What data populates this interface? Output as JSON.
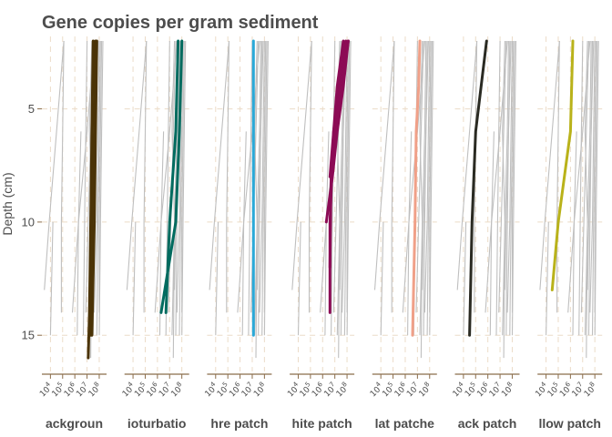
{
  "chart_data": {
    "type": "line",
    "title": "Gene copies per gram sediment",
    "ylabel": "Depth (cm)",
    "xlabel": "",
    "y_scale": "reversed",
    "x_scale": "log10",
    "xlim_log10": [
      3.3,
      8.6
    ],
    "ylim": [
      1.8,
      16.6
    ],
    "y_ticks": [
      5,
      10,
      15
    ],
    "y_tick_labels": [
      "5",
      "10",
      "15"
    ],
    "x_tick_labels": [
      "10^4",
      "10^5",
      "10^6",
      "10^7",
      "10^8"
    ],
    "x_tick_exponents": [
      4,
      5,
      6,
      7,
      8
    ],
    "grid": true,
    "legend": "none",
    "panels": [
      {
        "label": "ackgroun",
        "color": "#4a3307",
        "series": [
          {
            "points": [
              [
                7.5,
                2
              ],
              [
                7.4,
                6
              ],
              [
                7.3,
                10
              ],
              [
                7.2,
                14
              ],
              [
                7.1,
                16
              ]
            ]
          },
          {
            "points": [
              [
                7.7,
                2
              ],
              [
                7.6,
                6
              ],
              [
                7.4,
                10
              ],
              [
                7.3,
                15
              ]
            ]
          },
          {
            "points": [
              [
                7.8,
                2
              ],
              [
                7.6,
                10
              ],
              [
                7.4,
                15
              ]
            ]
          }
        ]
      },
      {
        "label": "ioturbatio",
        "color": "#006b5f",
        "series": [
          {
            "points": [
              [
                7.7,
                2
              ],
              [
                7.5,
                6
              ],
              [
                7.0,
                10
              ],
              [
                6.7,
                14
              ]
            ]
          },
          {
            "points": [
              [
                8.0,
                2
              ],
              [
                7.8,
                6
              ],
              [
                7.5,
                10
              ],
              [
                6.3,
                14
              ]
            ]
          }
        ]
      },
      {
        "label": "hre patch",
        "color": "#2aa9d8",
        "series": [
          {
            "points": [
              [
                7.1,
                2
              ],
              [
                7.1,
                6
              ],
              [
                7.1,
                10
              ],
              [
                7.1,
                15
              ]
            ]
          }
        ]
      },
      {
        "label": "hite patch",
        "color": "#8c0b55",
        "series": [
          {
            "points": [
              [
                8.1,
                2
              ],
              [
                7.7,
                4
              ],
              [
                7.2,
                6
              ],
              [
                6.8,
                8
              ],
              [
                6.3,
                10
              ]
            ]
          },
          {
            "points": [
              [
                7.9,
                2
              ],
              [
                7.4,
                4
              ],
              [
                6.9,
                6
              ],
              [
                6.6,
                10
              ],
              [
                6.6,
                14
              ]
            ]
          },
          {
            "points": [
              [
                8.1,
                2
              ],
              [
                7.6,
                4
              ],
              [
                7.1,
                6
              ],
              [
                6.7,
                8
              ],
              [
                6.6,
                12
              ]
            ]
          },
          {
            "points": [
              [
                7.7,
                2
              ],
              [
                7.2,
                4
              ],
              [
                6.9,
                6
              ],
              [
                6.6,
                8
              ]
            ]
          }
        ]
      },
      {
        "label": "lat patche",
        "color": "#f0a088",
        "series": [
          {
            "points": [
              [
                7.2,
                2
              ],
              [
                7.1,
                4
              ],
              [
                6.9,
                6
              ],
              [
                6.8,
                10
              ],
              [
                6.6,
                15
              ]
            ]
          }
        ]
      },
      {
        "label": "ack patch",
        "color": "#2a2a22",
        "series": [
          {
            "points": [
              [
                5.9,
                2
              ],
              [
                5.0,
                6
              ],
              [
                4.7,
                10
              ],
              [
                4.5,
                15
              ]
            ]
          }
        ]
      },
      {
        "label": "llow patch",
        "color": "#b9b21a",
        "series": [
          {
            "points": [
              [
                6.2,
                2
              ],
              [
                6.0,
                6
              ],
              [
                5.0,
                10
              ],
              [
                4.5,
                13
              ]
            ]
          }
        ]
      }
    ],
    "background_series": [
      {
        "points": [
          [
            5.1,
            2
          ],
          [
            4.5,
            6
          ],
          [
            3.9,
            10
          ],
          [
            3.5,
            13
          ]
        ]
      },
      {
        "points": [
          [
            5.1,
            2
          ],
          [
            5.0,
            6
          ],
          [
            4.9,
            10
          ],
          [
            4.9,
            14
          ]
        ]
      },
      {
        "points": [
          [
            7.0,
            2
          ],
          [
            6.9,
            6
          ],
          [
            6.8,
            10
          ],
          [
            6.7,
            15
          ]
        ]
      },
      {
        "points": [
          [
            7.5,
            2
          ],
          [
            7.3,
            6
          ],
          [
            7.1,
            10
          ],
          [
            6.9,
            14
          ]
        ]
      },
      {
        "points": [
          [
            7.7,
            2
          ],
          [
            7.6,
            6
          ],
          [
            7.4,
            10
          ],
          [
            7.2,
            15
          ]
        ]
      },
      {
        "points": [
          [
            7.8,
            2
          ],
          [
            7.7,
            6
          ],
          [
            7.6,
            10
          ],
          [
            7.5,
            15
          ]
        ]
      },
      {
        "points": [
          [
            8.0,
            2
          ],
          [
            7.9,
            6
          ],
          [
            7.8,
            10
          ],
          [
            7.6,
            14
          ]
        ]
      },
      {
        "points": [
          [
            8.1,
            2
          ],
          [
            8.0,
            6
          ],
          [
            7.9,
            10
          ],
          [
            7.8,
            15
          ]
        ]
      },
      {
        "points": [
          [
            8.2,
            2
          ],
          [
            8.1,
            6
          ],
          [
            8.0,
            10
          ],
          [
            8.0,
            14
          ]
        ]
      },
      {
        "points": [
          [
            7.6,
            2
          ],
          [
            7.0,
            6
          ],
          [
            6.3,
            10
          ],
          [
            5.8,
            14
          ]
        ]
      },
      {
        "points": [
          [
            8.3,
            2
          ],
          [
            8.2,
            6
          ],
          [
            8.1,
            10
          ],
          [
            8.0,
            15
          ]
        ]
      },
      {
        "points": [
          [
            7.4,
            2
          ],
          [
            7.2,
            6
          ],
          [
            7.4,
            10
          ],
          [
            7.3,
            16
          ]
        ]
      },
      {
        "points": [
          [
            7.9,
            2
          ],
          [
            7.7,
            6
          ],
          [
            7.5,
            10
          ],
          [
            7.4,
            13
          ]
        ]
      },
      {
        "points": [
          [
            4.2,
            10
          ],
          [
            4.0,
            15
          ]
        ]
      },
      {
        "points": [
          [
            6.5,
            6
          ],
          [
            6.3,
            10
          ],
          [
            6.2,
            15
          ]
        ]
      }
    ]
  }
}
